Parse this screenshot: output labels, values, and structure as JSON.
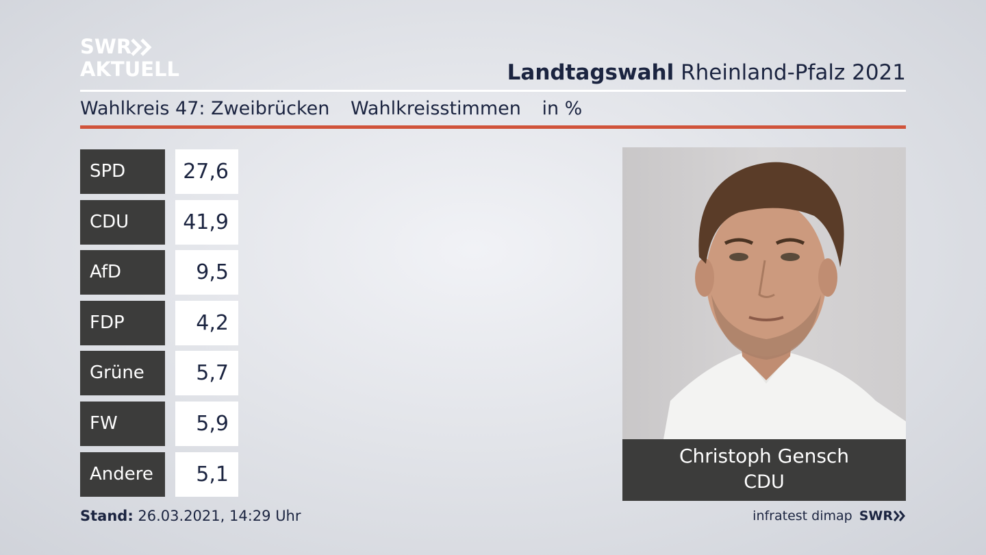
{
  "logo": {
    "line1": "SWR",
    "line2": "AKTUELL"
  },
  "header": {
    "title_bold": "Landtagswahl",
    "title_rest": "Rheinland-Pfalz 2021"
  },
  "subheader": {
    "wahlkreis": "Wahlkreis 47: Zweibrücken",
    "type": "Wahlkreisstimmen",
    "unit": "in %"
  },
  "chart_data": {
    "type": "table",
    "categories": [
      "SPD",
      "CDU",
      "AfD",
      "FDP",
      "Grüne",
      "FW",
      "Andere"
    ],
    "values": [
      27.6,
      41.9,
      9.5,
      4.2,
      5.7,
      5.9,
      5.1
    ],
    "labels": [
      "27,6",
      "41,9",
      "9,5",
      "4,2",
      "5,7",
      "5,9",
      "5,1"
    ],
    "unit": "in %"
  },
  "candidate": {
    "name": "Christoph Gensch",
    "party": "CDU"
  },
  "footer": {
    "stand_label": "Stand:",
    "stand_value": "26.03.2021, 14:29 Uhr",
    "source": "infratest dimap",
    "brand": "SWR"
  },
  "colors": {
    "party_box": "#3c3c3b",
    "accent_rule": "#d0533a",
    "text": "#1b2440"
  }
}
